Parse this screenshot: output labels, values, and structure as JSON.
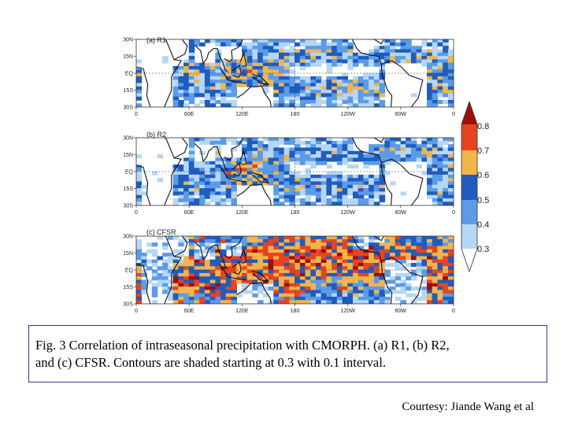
{
  "chart_data": {
    "type": "heatmap",
    "variable": "Correlation of intraseasonal precipitation with CMORPH",
    "colorbar": {
      "levels": [
        0.3,
        0.4,
        0.5,
        0.6,
        0.7,
        0.8
      ],
      "labels": [
        "0.3",
        "0.4",
        "0.5",
        "0.6",
        "0.7",
        "0.8"
      ],
      "colors": [
        "#ffffff",
        "#b5d7f5",
        "#5b9be8",
        "#1f5cbf",
        "#f2b54a",
        "#e8431f",
        "#9e0e0e"
      ]
    },
    "x_ticks": [
      "0",
      "60E",
      "120E",
      "180",
      "120W",
      "60W",
      "0"
    ],
    "y_ticks": [
      "30N",
      "15N",
      "EQ",
      "15S",
      "30S"
    ],
    "xlim": [
      0,
      360
    ],
    "ylim": [
      -30,
      30
    ],
    "panels": [
      {
        "id": "a",
        "label": "(a) R1",
        "mean_level": 0.48
      },
      {
        "id": "b",
        "label": "(b) R2",
        "mean_level": 0.47
      },
      {
        "id": "c",
        "label": "(c) CFSR",
        "mean_level": 0.66
      }
    ]
  },
  "caption": {
    "line1": "Fig. 3 Correlation of intraseasonal precipitation with CMORPH. (a) R1, (b) R2,",
    "line2": "and (c) CFSR.  Contours are shaded starting at 0.3 with 0.1 interval."
  },
  "credit": "Courtesy: Jiande Wang et al",
  "colors": {
    "border": "#2e3d8c",
    "background": "#ffffff"
  }
}
